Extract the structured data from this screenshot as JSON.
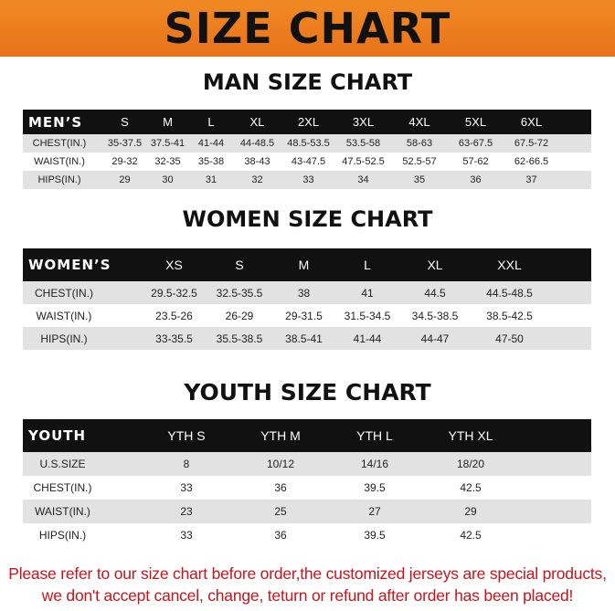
{
  "title": "SIZE CHART",
  "colors": {
    "banner": "#ee7f20",
    "header_row": "#111111",
    "note": "#c8141c"
  },
  "men": {
    "title": "MAN SIZE CHART",
    "header": "MEN’S",
    "sizes": [
      "S",
      "M",
      "L",
      "XL",
      "2XL",
      "3XL",
      "4XL",
      "5XL",
      "6XL"
    ],
    "rows": [
      {
        "label": "CHEST(IN.)",
        "values": [
          "35-37.5",
          "37.5-41",
          "41-44",
          "44-48.5",
          "48.5-53.5",
          "53.5-58",
          "58-63",
          "63-67.5",
          "67.5-72"
        ]
      },
      {
        "label": "WAIST(IN.)",
        "values": [
          "29-32",
          "32-35",
          "35-38",
          "38-43",
          "43-47.5",
          "47.5-52.5",
          "52.5-57",
          "57-62",
          "62-66.5"
        ]
      },
      {
        "label": "HIPS(IN.)",
        "values": [
          "29",
          "30",
          "31",
          "32",
          "33",
          "34",
          "35",
          "36",
          "37"
        ]
      }
    ]
  },
  "women": {
    "title": "WOMEN SIZE CHART",
    "header": "WOMEN’S",
    "sizes": [
      "XS",
      "S",
      "M",
      "L",
      "XL",
      "XXL"
    ],
    "rows": [
      {
        "label": "CHEST(IN.)",
        "values": [
          "29.5-32.5",
          "32.5-35.5",
          "38",
          "41",
          "44.5",
          "44.5-48.5"
        ]
      },
      {
        "label": "WAIST(IN.)",
        "values": [
          "23.5-26",
          "26-29",
          "29-31.5",
          "31.5-34.5",
          "34.5-38.5",
          "38.5-42.5"
        ]
      },
      {
        "label": "HIPS(IN.)",
        "values": [
          "33-35.5",
          "35.5-38.5",
          "38.5-41",
          "41-44",
          "44-47",
          "47-50"
        ]
      }
    ]
  },
  "youth": {
    "title": "YOUTH SIZE CHART",
    "header": "YOUTH",
    "sizes": [
      "YTH S",
      "YTH M",
      "YTH L",
      "YTH XL"
    ],
    "rows": [
      {
        "label": "U.S.SIZE",
        "values": [
          "8",
          "10/12",
          "14/16",
          "18/20"
        ]
      },
      {
        "label": "CHEST(IN.)",
        "values": [
          "33",
          "36",
          "39.5",
          "42.5"
        ]
      },
      {
        "label": "WAIST(IN.)",
        "values": [
          "23",
          "25",
          "27",
          "29"
        ]
      },
      {
        "label": "HIPS(IN.)",
        "values": [
          "33",
          "36",
          "39.5",
          "42.5"
        ]
      }
    ]
  },
  "note": {
    "line1": "Please refer to our size chart before order,the customized jerseys are special products,",
    "line2": "we don't accept cancel, change, teturn or refund after order has been placed!"
  }
}
